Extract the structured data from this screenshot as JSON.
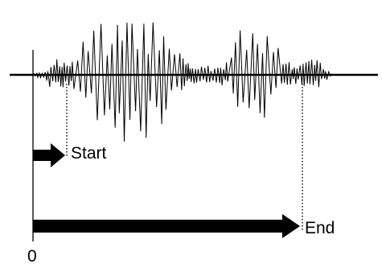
{
  "labels": {
    "start": "Start",
    "end": "End",
    "origin": "0"
  },
  "colors": {
    "ink": "#000000",
    "background": "#ffffff"
  }
}
